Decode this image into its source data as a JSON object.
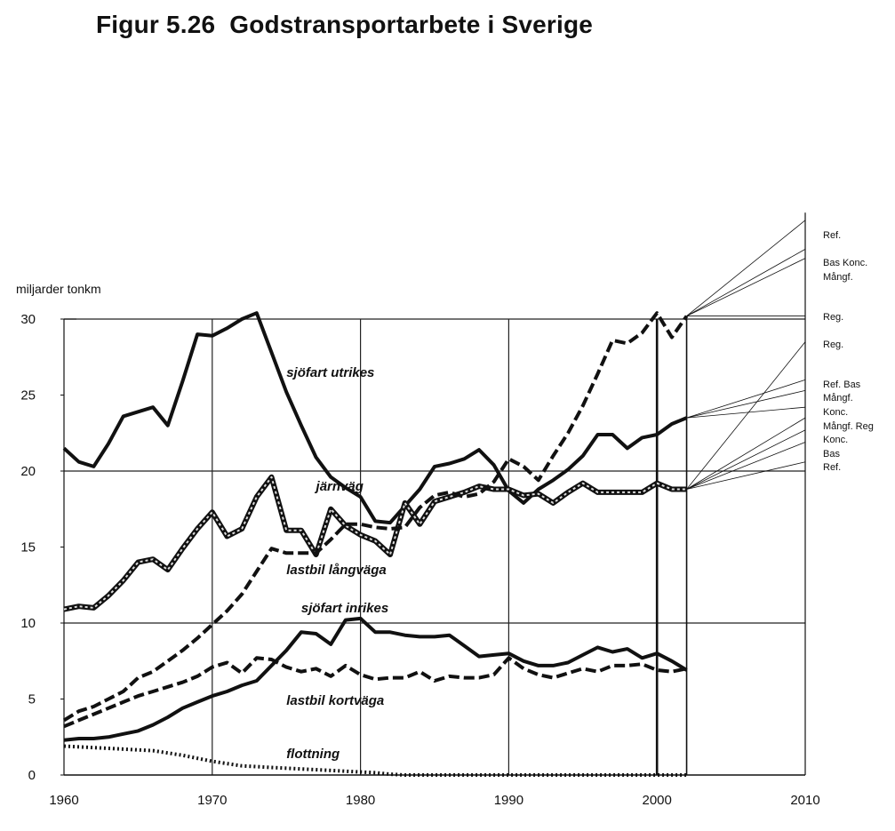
{
  "figure": {
    "title": "Figur 5.26  Godstransportarbete i Sverige"
  },
  "chart_data": {
    "type": "line",
    "title": "Figur 5.26  Godstransportarbete i Sverige",
    "ylabel": "miljarder tonkm",
    "xlabel": "",
    "xlim": [
      1960,
      2010
    ],
    "ylim": [
      0,
      30
    ],
    "xticks": [
      1960,
      1970,
      1980,
      1990,
      2000,
      2010
    ],
    "yticks": [
      0,
      5,
      10,
      15,
      20,
      25,
      30
    ],
    "grid": "horizontal lines at 10, 20, 30; vertical lines at 1970, 1980, 1990, 2000, 2002, 2010",
    "series": [
      {
        "name": "sjöfart utrikes",
        "style": "solid",
        "color": "#111111",
        "x": [
          1960,
          1961,
          1962,
          1963,
          1964,
          1965,
          1966,
          1967,
          1968,
          1969,
          1970,
          1971,
          1972,
          1973,
          1974,
          1975,
          1976,
          1977,
          1978,
          1979,
          1980,
          1981,
          1982,
          1983,
          1984,
          1985,
          1986,
          1987,
          1988,
          1989,
          1990,
          1991,
          1992,
          1993,
          1994,
          1995,
          1996,
          1997,
          1998,
          1999,
          2000,
          2001,
          2002
        ],
        "y": [
          21.5,
          20.6,
          20.3,
          21.8,
          23.6,
          23.9,
          24.2,
          23.0,
          25.9,
          29.0,
          28.9,
          29.4,
          30.0,
          30.4,
          27.8,
          25.2,
          23.0,
          20.9,
          19.6,
          18.9,
          18.3,
          16.7,
          16.6,
          17.7,
          18.8,
          20.3,
          20.5,
          20.8,
          21.4,
          20.4,
          18.7,
          17.9,
          18.8,
          19.4,
          20.1,
          21.0,
          22.4,
          22.4,
          21.5,
          22.2,
          22.4,
          23.1,
          23.5
        ]
      },
      {
        "name": "järnväg",
        "style": "striped",
        "color": "#111111",
        "x": [
          1960,
          1961,
          1962,
          1963,
          1964,
          1965,
          1966,
          1967,
          1968,
          1969,
          1970,
          1971,
          1972,
          1973,
          1974,
          1975,
          1976,
          1977,
          1978,
          1979,
          1980,
          1981,
          1982,
          1983,
          1984,
          1985,
          1986,
          1987,
          1988,
          1989,
          1990,
          1991,
          1992,
          1993,
          1994,
          1995,
          1996,
          1997,
          1998,
          1999,
          2000,
          2001,
          2002
        ],
        "y": [
          10.9,
          11.1,
          11.0,
          11.8,
          12.8,
          14.0,
          14.2,
          13.5,
          14.9,
          16.2,
          17.3,
          15.7,
          16.2,
          18.3,
          19.6,
          16.1,
          16.1,
          14.5,
          17.5,
          16.4,
          15.8,
          15.4,
          14.5,
          17.9,
          16.5,
          18.0,
          18.3,
          18.6,
          19.0,
          18.8,
          18.8,
          18.4,
          18.5,
          17.9,
          18.6,
          19.2,
          18.6,
          18.6,
          18.6,
          18.6,
          19.2,
          18.8,
          18.8
        ]
      },
      {
        "name": "lastbil långväga",
        "style": "dashed",
        "color": "#111111",
        "x": [
          1960,
          1961,
          1962,
          1963,
          1964,
          1965,
          1966,
          1967,
          1968,
          1969,
          1970,
          1971,
          1972,
          1973,
          1974,
          1975,
          1976,
          1977,
          1978,
          1979,
          1980,
          1981,
          1982,
          1983,
          1984,
          1985,
          1986,
          1987,
          1988,
          1989,
          1990,
          1991,
          1992,
          1993,
          1994,
          1995,
          1996,
          1997,
          1998,
          1999,
          2000,
          2001,
          2002
        ],
        "y": [
          3.6,
          4.2,
          4.5,
          5.0,
          5.5,
          6.4,
          6.8,
          7.5,
          8.2,
          9.0,
          9.9,
          10.8,
          11.9,
          13.4,
          14.9,
          14.6,
          14.6,
          14.6,
          15.5,
          16.5,
          16.5,
          16.3,
          16.2,
          16.3,
          17.6,
          18.4,
          18.6,
          18.3,
          18.5,
          19.3,
          20.8,
          20.3,
          19.4,
          21.0,
          22.5,
          24.3,
          26.4,
          28.6,
          28.4,
          29.1,
          30.4,
          28.8,
          30.2
        ]
      },
      {
        "name": "sjöfart inrikes",
        "style": "solid",
        "color": "#111111",
        "x": [
          1960,
          1961,
          1962,
          1963,
          1964,
          1965,
          1966,
          1967,
          1968,
          1969,
          1970,
          1971,
          1972,
          1973,
          1974,
          1975,
          1976,
          1977,
          1978,
          1979,
          1980,
          1981,
          1982,
          1983,
          1984,
          1985,
          1986,
          1987,
          1988,
          1989,
          1990,
          1991,
          1992,
          1993,
          1994,
          1995,
          1996,
          1997,
          1998,
          1999,
          2000,
          2001,
          2002
        ],
        "y": [
          2.3,
          2.4,
          2.4,
          2.5,
          2.7,
          2.9,
          3.3,
          3.8,
          4.4,
          4.8,
          5.2,
          5.5,
          5.9,
          6.2,
          7.2,
          8.2,
          9.4,
          9.3,
          8.6,
          10.2,
          10.3,
          9.4,
          9.4,
          9.2,
          9.1,
          9.1,
          9.2,
          8.5,
          7.8,
          7.9,
          8.0,
          7.5,
          7.2,
          7.2,
          7.4,
          7.9,
          8.4,
          8.1,
          8.3,
          7.7,
          8.0,
          7.5,
          6.9
        ]
      },
      {
        "name": "lastbil kortväga",
        "style": "dashed",
        "color": "#111111",
        "x": [
          1960,
          1961,
          1962,
          1963,
          1964,
          1965,
          1966,
          1967,
          1968,
          1969,
          1970,
          1971,
          1972,
          1973,
          1974,
          1975,
          1976,
          1977,
          1978,
          1979,
          1980,
          1981,
          1982,
          1983,
          1984,
          1985,
          1986,
          1987,
          1988,
          1989,
          1990,
          1991,
          1992,
          1993,
          1994,
          1995,
          1996,
          1997,
          1998,
          1999,
          2000,
          2001,
          2002
        ],
        "y": [
          3.2,
          3.6,
          4.0,
          4.4,
          4.8,
          5.2,
          5.5,
          5.8,
          6.1,
          6.5,
          7.1,
          7.4,
          6.7,
          7.7,
          7.6,
          7.1,
          6.8,
          7.0,
          6.5,
          7.2,
          6.6,
          6.3,
          6.4,
          6.4,
          6.8,
          6.2,
          6.5,
          6.4,
          6.4,
          6.6,
          7.7,
          7.0,
          6.6,
          6.4,
          6.7,
          7.0,
          6.8,
          7.2,
          7.2,
          7.3,
          6.9,
          6.8,
          7.0
        ]
      },
      {
        "name": "flottning",
        "style": "dotted",
        "color": "#111111",
        "x": [
          1960,
          1962,
          1964,
          1966,
          1968,
          1970,
          1972,
          1974,
          1976,
          1978,
          1980,
          1981,
          1982,
          1983,
          1984,
          1986,
          1990,
          2000,
          2002
        ],
        "y": [
          1.9,
          1.8,
          1.7,
          1.6,
          1.3,
          0.9,
          0.6,
          0.5,
          0.4,
          0.3,
          0.2,
          0.15,
          0.05,
          0.0,
          0.0,
          0.0,
          0.0,
          0.0,
          0.0
        ]
      }
    ],
    "scenarios": [
      {
        "name": "lastbil långväga",
        "start": [
          2002,
          30.2
        ],
        "projections": [
          {
            "label": "Ref.",
            "y2010": 36.5
          },
          {
            "label": "Bas Konc.",
            "y2010": 34.6
          },
          {
            "label": "Mångf.",
            "y2010": 34.0
          },
          {
            "label": "Reg.",
            "y2010": 30.2
          }
        ]
      },
      {
        "name": "sjöfart utrikes",
        "start": [
          2002,
          23.5
        ],
        "projections": [
          {
            "label": "Ref. Bas",
            "y2010": 26.0
          },
          {
            "label": "Mångf.",
            "y2010": 25.3
          },
          {
            "label": "Konc.",
            "y2010": 24.2
          }
        ]
      },
      {
        "name": "järnväg",
        "start": [
          2002,
          18.8
        ],
        "projections": [
          {
            "label": "Reg.",
            "y2010": 28.5
          },
          {
            "label": "Mångf. Reg",
            "y2010": 23.5
          },
          {
            "label": "Konc.",
            "y2010": 22.7
          },
          {
            "label": "Bas",
            "y2010": 21.9
          },
          {
            "label": "Ref.",
            "y2010": 20.6
          }
        ]
      }
    ],
    "annotations": [
      {
        "text": "sjöfart utrikes",
        "x": 1975.0,
        "y": 26.5
      },
      {
        "text": "järnväg",
        "x": 1977.0,
        "y": 19.0
      },
      {
        "text": "lastbil långväga",
        "x": 1975.0,
        "y": 13.5
      },
      {
        "text": "sjöfart inrikes",
        "x": 1976.0,
        "y": 11.0
      },
      {
        "text": "lastbil kortväga",
        "x": 1975.0,
        "y": 4.9
      },
      {
        "text": "flottning",
        "x": 1975.0,
        "y": 1.4
      }
    ]
  }
}
